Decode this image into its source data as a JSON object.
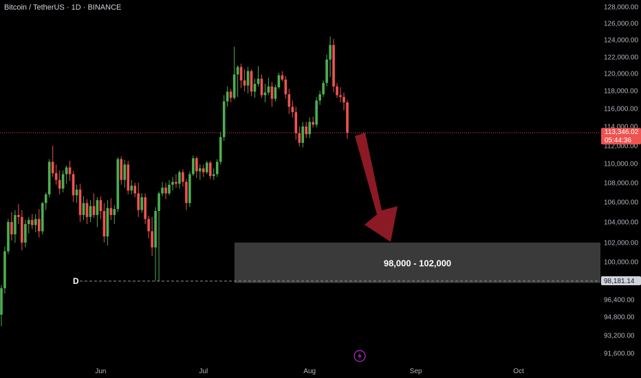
{
  "header": {
    "symbol_title": "Bitcoin / TetherUS · 1D · BINANCE"
  },
  "colors": {
    "up": "#26a69a",
    "up_bright": "#4caf50",
    "down": "#ef5350",
    "background": "#000000",
    "zone_fill": "#3a3a3a",
    "arrow": "#8b1a24",
    "current_price_line": "#ef5350",
    "level_line": "#9598a1",
    "lightning_icon": "#9c27b0"
  },
  "chart_data": {
    "type": "candlestick",
    "y_axis": {
      "ticks": [
        "128,000.00",
        "126,000.00",
        "124,000.00",
        "122,000.00",
        "120,000.00",
        "118,000.00",
        "116,000.00",
        "114,000.00",
        "112,000.00",
        "110,000.00",
        "108,000.00",
        "106,000.00",
        "104,000.00",
        "102,000.00",
        "100,000.00",
        "96,400.00",
        "94,800.00",
        "93,200.00",
        "91,600.00"
      ],
      "tick_values": [
        128000,
        126000,
        124000,
        122000,
        120000,
        118000,
        116000,
        114000,
        112000,
        110000,
        108000,
        106000,
        104000,
        102000,
        100000,
        96400,
        94800,
        93200,
        91600
      ]
    },
    "x_axis": {
      "months": [
        "Jun",
        "Jul",
        "Aug",
        "Sep",
        "Oct"
      ],
      "month_day_index": [
        29,
        59,
        90,
        121,
        151
      ]
    },
    "current_price": {
      "price": "113,346.02",
      "countdown": "05:44:36",
      "value": 113346
    },
    "level": {
      "letter": "D",
      "price": "98,181.14",
      "value": 98181
    },
    "target_zone": {
      "label": "98,000 - 102,000",
      "low": 98000,
      "high": 102000
    },
    "candles_start_day_index": 0,
    "candles": [
      [
        95000,
        97800,
        94000,
        97500
      ],
      [
        97500,
        101600,
        97000,
        101100
      ],
      [
        101100,
        104300,
        100800,
        104000
      ],
      [
        104000,
        105000,
        102200,
        102800
      ],
      [
        102800,
        105200,
        102000,
        104700
      ],
      [
        104700,
        105800,
        103800,
        104500
      ],
      [
        104500,
        105200,
        101200,
        102000
      ],
      [
        102000,
        104200,
        101500,
        103800
      ],
      [
        103800,
        104500,
        102900,
        104200
      ],
      [
        104200,
        104800,
        103300,
        103700
      ],
      [
        103700,
        104800,
        103000,
        104300
      ],
      [
        104300,
        105300,
        102500,
        103100
      ],
      [
        103100,
        106000,
        102800,
        105900
      ],
      [
        105900,
        107000,
        105200,
        106800
      ],
      [
        106800,
        110500,
        106500,
        110200
      ],
      [
        110200,
        112000,
        108600,
        109000
      ],
      [
        109000,
        109900,
        107800,
        108300
      ],
      [
        108300,
        109300,
        106800,
        107400
      ],
      [
        107400,
        109300,
        107000,
        108900
      ],
      [
        108900,
        109800,
        107900,
        109600
      ],
      [
        109600,
        110300,
        108200,
        108900
      ],
      [
        108900,
        109200,
        106000,
        106700
      ],
      [
        106700,
        107800,
        105900,
        107300
      ],
      [
        107300,
        107900,
        104000,
        104700
      ],
      [
        104700,
        106600,
        104200,
        105900
      ],
      [
        105900,
        106300,
        103800,
        104500
      ],
      [
        104500,
        106200,
        104000,
        105600
      ],
      [
        105600,
        106900,
        104400,
        104700
      ],
      [
        104700,
        106500,
        103500,
        106200
      ],
      [
        106200,
        106600,
        104300,
        105100
      ],
      [
        105100,
        105900,
        102000,
        102600
      ],
      [
        102600,
        106200,
        101700,
        105400
      ],
      [
        105400,
        106400,
        104200,
        104700
      ],
      [
        104700,
        105700,
        103800,
        105300
      ],
      [
        105300,
        110700,
        105000,
        110500
      ],
      [
        110500,
        110800,
        107800,
        108300
      ],
      [
        108300,
        110400,
        107500,
        109900
      ],
      [
        109900,
        110300,
        106800,
        107200
      ],
      [
        107200,
        108300,
        106800,
        107700
      ],
      [
        107700,
        108000,
        106500,
        106900
      ],
      [
        106900,
        108000,
        104500,
        105200
      ],
      [
        105200,
        106900,
        104900,
        106500
      ],
      [
        106500,
        106900,
        103800,
        104300
      ],
      [
        104300,
        104600,
        102400,
        103100
      ],
      [
        103100,
        104500,
        100600,
        101500
      ],
      [
        101500,
        105500,
        98200,
        105100
      ],
      [
        105100,
        107100,
        98200,
        106900
      ],
      [
        106900,
        108100,
        106600,
        107500
      ],
      [
        107500,
        108000,
        106300,
        106900
      ],
      [
        106900,
        108300,
        106700,
        107800
      ],
      [
        107800,
        108600,
        107200,
        108100
      ],
      [
        108100,
        108900,
        107500,
        107900
      ],
      [
        107900,
        109300,
        107400,
        109100
      ],
      [
        109100,
        109400,
        107600,
        108100
      ],
      [
        108100,
        108400,
        105200,
        105900
      ],
      [
        105900,
        109200,
        105500,
        108900
      ],
      [
        108900,
        110900,
        108700,
        110600
      ],
      [
        110600,
        110800,
        108500,
        109200
      ],
      [
        109200,
        109900,
        108300,
        109500
      ],
      [
        109500,
        109900,
        108600,
        109100
      ],
      [
        109100,
        110300,
        108900,
        110100
      ],
      [
        110100,
        110300,
        108400,
        108700
      ],
      [
        108700,
        109500,
        108300,
        108900
      ],
      [
        108900,
        110500,
        108600,
        110200
      ],
      [
        110200,
        113400,
        109900,
        112900
      ],
      [
        112900,
        117500,
        112500,
        116800
      ],
      [
        116800,
        118500,
        116200,
        117900
      ],
      [
        117900,
        118200,
        116700,
        117200
      ],
      [
        117200,
        123200,
        117000,
        119900
      ],
      [
        119900,
        121000,
        117300,
        120800
      ],
      [
        120800,
        121200,
        118300,
        119200
      ],
      [
        119200,
        120500,
        117900,
        118600
      ],
      [
        118600,
        120800,
        117700,
        120300
      ],
      [
        120300,
        120500,
        117400,
        117900
      ],
      [
        117900,
        119400,
        117200,
        118800
      ],
      [
        118800,
        120900,
        118500,
        119400
      ],
      [
        119400,
        119900,
        117200,
        117500
      ],
      [
        117500,
        118800,
        116700,
        117800
      ],
      [
        117800,
        119500,
        117500,
        118500
      ],
      [
        118500,
        119000,
        116200,
        117100
      ],
      [
        117100,
        118700,
        116800,
        118400
      ],
      [
        118400,
        120100,
        118200,
        119800
      ],
      [
        119800,
        120300,
        119100,
        119300
      ],
      [
        119300,
        119700,
        117100,
        117600
      ],
      [
        117600,
        118200,
        115400,
        116200
      ],
      [
        116200,
        116900,
        115000,
        115600
      ],
      [
        115600,
        116200,
        112600,
        113300
      ],
      [
        113300,
        114000,
        111900,
        112300
      ],
      [
        112300,
        114500,
        111800,
        114000
      ],
      [
        114000,
        114500,
        112800,
        113200
      ],
      [
        113200,
        115000,
        112800,
        114500
      ],
      [
        114500,
        115100,
        113900,
        114200
      ],
      [
        114200,
        117300,
        113900,
        116900
      ],
      [
        116900,
        118000,
        116400,
        117600
      ],
      [
        117600,
        119200,
        117300,
        118900
      ],
      [
        118900,
        122300,
        118500,
        121700
      ],
      [
        121700,
        124400,
        119600,
        123400
      ],
      [
        123400,
        124100,
        117800,
        118500
      ],
      [
        118500,
        118900,
        117200,
        117500
      ],
      [
        117500,
        118400,
        116700,
        117300
      ],
      [
        117300,
        117800,
        115800,
        116700
      ],
      [
        116700,
        116900,
        112700,
        113346
      ]
    ]
  }
}
